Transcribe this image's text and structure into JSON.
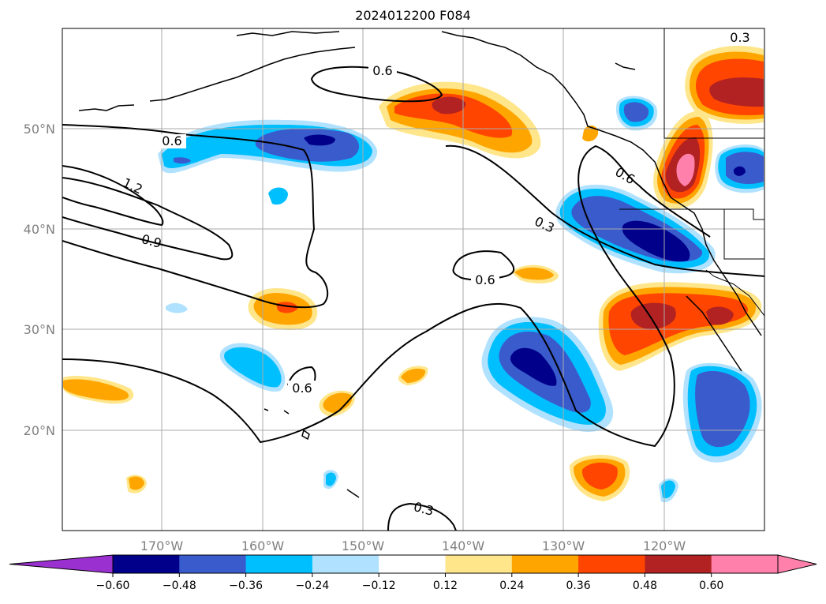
{
  "title": "2024012200 F084",
  "lat_labels": [
    "50°N",
    "40°N",
    "30°N",
    "20°N"
  ],
  "lon_labels": [
    "170°W",
    "160°W",
    "150°W",
    "140°W",
    "130°W",
    "120°W"
  ],
  "contour_labels": [
    "0.6",
    "0.6",
    "1.2",
    "0.9",
    "0.3",
    "0.6",
    "0.6",
    "0.6",
    "0.3",
    "0.3"
  ],
  "colorbar": {
    "ticks": [
      "−0.60",
      "−0.48",
      "−0.36",
      "−0.24",
      "−0.12",
      "0.12",
      "0.24",
      "0.36",
      "0.48",
      "0.60"
    ],
    "colors": [
      "#9b30d0",
      "#00008b",
      "#3a5bcc",
      "#00bfff",
      "#b0e2ff",
      "#ffffff",
      "#ffe68a",
      "#ffa500",
      "#ff4500",
      "#b22222",
      "#ff80ab",
      "#ff80ab"
    ]
  },
  "colors": {
    "neg_extreme": "#00008b",
    "neg_strong": "#3a5bcc",
    "neg_mid": "#00bfff",
    "neg_weak": "#b0e2ff",
    "pos_weak": "#ffe68a",
    "pos_mid": "#ffa500",
    "pos_strong": "#ff4500",
    "pos_stronger": "#b22222",
    "pos_extreme": "#ff80ab",
    "grid": "#aaaaaa",
    "coast": "#000000"
  }
}
